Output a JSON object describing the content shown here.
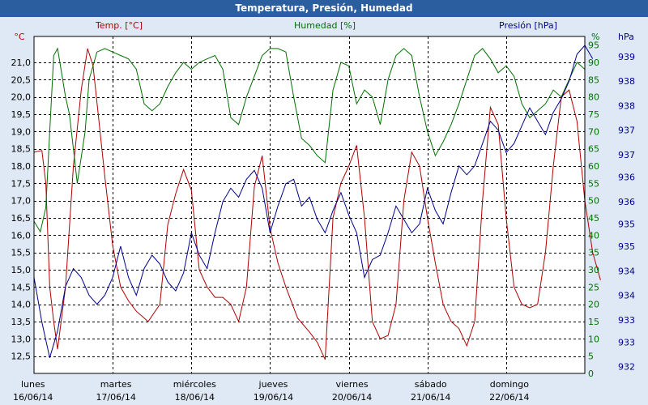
{
  "colors": {
    "temp": "#b00000",
    "hum": "#007000",
    "pres": "#000090",
    "grid": "#000000",
    "plot_bg": "#ffffff",
    "page_bg": "#dfe9f5"
  },
  "chart_data": {
    "type": "line",
    "title": "Temperatura, Presión, Humedad",
    "x_categories": [
      {
        "day": "lunes",
        "date": "16/06/14"
      },
      {
        "day": "martes",
        "date": "17/06/14"
      },
      {
        "day": "miércoles",
        "date": "18/06/14"
      },
      {
        "day": "jueves",
        "date": "19/06/14"
      },
      {
        "day": "viernes",
        "date": "20/06/14"
      },
      {
        "day": "sábado",
        "date": "21/06/14"
      },
      {
        "day": "domingo",
        "date": "22/06/14"
      }
    ],
    "x_range": [
      0,
      7
    ],
    "axes": {
      "temp": {
        "unit": "°C",
        "label": "Temp. [°C]",
        "range": [
          12.0,
          21.75
        ],
        "ticks": [
          "12,5",
          "13,0",
          "13,5",
          "14,0",
          "14,5",
          "15,0",
          "15,5",
          "16,0",
          "16,5",
          "17,0",
          "17,5",
          "18,0",
          "18,5",
          "19,0",
          "19,5",
          "20,0",
          "20,5",
          "21,0"
        ]
      },
      "hum": {
        "unit": "%",
        "label": "Humedad [%]",
        "range": [
          0,
          97.5
        ],
        "ticks": [
          "0",
          "5",
          "10",
          "15",
          "20",
          "25",
          "30",
          "35",
          "40",
          "45",
          "50",
          "55",
          "60",
          "65",
          "70",
          "75",
          "80",
          "85",
          "90",
          "95"
        ]
      },
      "pres": {
        "unit": "hPa",
        "label": "Presión [hPa]",
        "range": [
          931.85,
          939.4
        ],
        "ticks": [
          {
            "v": 932.0,
            "t": "932"
          },
          {
            "v": 932.55,
            "t": "933"
          },
          {
            "v": 933.05,
            "t": "933"
          },
          {
            "v": 933.6,
            "t": "934"
          },
          {
            "v": 934.15,
            "t": "934"
          },
          {
            "v": 934.7,
            "t": "935"
          },
          {
            "v": 935.2,
            "t": "935"
          },
          {
            "v": 935.7,
            "t": "936"
          },
          {
            "v": 936.25,
            "t": "936"
          },
          {
            "v": 936.75,
            "t": "937"
          },
          {
            "v": 937.3,
            "t": "937"
          },
          {
            "v": 937.85,
            "t": "938"
          },
          {
            "v": 938.4,
            "t": "938"
          },
          {
            "v": 938.95,
            "t": "939"
          }
        ]
      }
    },
    "series": [
      {
        "name": "Temp. [°C]",
        "axis": "temp",
        "points": [
          [
            0.0,
            18.4
          ],
          [
            0.1,
            18.45
          ],
          [
            0.15,
            17.5
          ],
          [
            0.2,
            14.5
          ],
          [
            0.25,
            13.5
          ],
          [
            0.3,
            12.7
          ],
          [
            0.4,
            14.5
          ],
          [
            0.5,
            18.0
          ],
          [
            0.6,
            20.2
          ],
          [
            0.68,
            21.4
          ],
          [
            0.75,
            20.9
          ],
          [
            0.9,
            17.7
          ],
          [
            1.0,
            15.7
          ],
          [
            1.1,
            14.5
          ],
          [
            1.2,
            14.1
          ],
          [
            1.3,
            13.8
          ],
          [
            1.45,
            13.5
          ],
          [
            1.6,
            14.0
          ],
          [
            1.7,
            16.3
          ],
          [
            1.8,
            17.2
          ],
          [
            1.9,
            17.9
          ],
          [
            2.0,
            17.3
          ],
          [
            2.1,
            15.0
          ],
          [
            2.2,
            14.5
          ],
          [
            2.3,
            14.2
          ],
          [
            2.4,
            14.2
          ],
          [
            2.5,
            14.0
          ],
          [
            2.6,
            13.5
          ],
          [
            2.7,
            14.5
          ],
          [
            2.8,
            17.4
          ],
          [
            2.9,
            18.3
          ],
          [
            3.0,
            16.2
          ],
          [
            3.1,
            15.2
          ],
          [
            3.2,
            14.5
          ],
          [
            3.35,
            13.6
          ],
          [
            3.5,
            13.2
          ],
          [
            3.6,
            12.9
          ],
          [
            3.7,
            12.4
          ],
          [
            3.8,
            16.5
          ],
          [
            3.9,
            17.5
          ],
          [
            4.0,
            18.0
          ],
          [
            4.1,
            18.6
          ],
          [
            4.2,
            16.5
          ],
          [
            4.3,
            13.5
          ],
          [
            4.4,
            13.0
          ],
          [
            4.5,
            13.1
          ],
          [
            4.6,
            14.0
          ],
          [
            4.7,
            17.0
          ],
          [
            4.8,
            18.4
          ],
          [
            4.9,
            18.0
          ],
          [
            5.0,
            16.5
          ],
          [
            5.1,
            15.2
          ],
          [
            5.2,
            14.0
          ],
          [
            5.3,
            13.5
          ],
          [
            5.4,
            13.3
          ],
          [
            5.5,
            12.8
          ],
          [
            5.6,
            13.5
          ],
          [
            5.7,
            17.0
          ],
          [
            5.8,
            19.7
          ],
          [
            5.9,
            19.2
          ],
          [
            6.0,
            16.5
          ],
          [
            6.1,
            14.5
          ],
          [
            6.2,
            14.0
          ],
          [
            6.3,
            13.9
          ],
          [
            6.4,
            14.0
          ],
          [
            6.5,
            15.5
          ],
          [
            6.6,
            18.0
          ],
          [
            6.7,
            20.0
          ],
          [
            6.8,
            20.2
          ],
          [
            6.9,
            19.3
          ],
          [
            7.0,
            17.0
          ],
          [
            7.1,
            15.5
          ],
          [
            7.2,
            14.7
          ]
        ]
      },
      {
        "name": "Humedad [%]",
        "axis": "hum",
        "points": [
          [
            0.0,
            44
          ],
          [
            0.08,
            41
          ],
          [
            0.15,
            48
          ],
          [
            0.2,
            70
          ],
          [
            0.25,
            92
          ],
          [
            0.3,
            94
          ],
          [
            0.4,
            80
          ],
          [
            0.45,
            75
          ],
          [
            0.5,
            65
          ],
          [
            0.55,
            55
          ],
          [
            0.65,
            70
          ],
          [
            0.7,
            85
          ],
          [
            0.8,
            93
          ],
          [
            0.9,
            94
          ],
          [
            1.0,
            93
          ],
          [
            1.1,
            92
          ],
          [
            1.2,
            91
          ],
          [
            1.3,
            88
          ],
          [
            1.4,
            78
          ],
          [
            1.5,
            76
          ],
          [
            1.6,
            78
          ],
          [
            1.7,
            83
          ],
          [
            1.8,
            87
          ],
          [
            1.9,
            90
          ],
          [
            2.0,
            88
          ],
          [
            2.1,
            90
          ],
          [
            2.2,
            91
          ],
          [
            2.3,
            92
          ],
          [
            2.4,
            88
          ],
          [
            2.5,
            74
          ],
          [
            2.6,
            72
          ],
          [
            2.7,
            80
          ],
          [
            2.8,
            86
          ],
          [
            2.9,
            92
          ],
          [
            3.0,
            94
          ],
          [
            3.1,
            94
          ],
          [
            3.2,
            93
          ],
          [
            3.3,
            80
          ],
          [
            3.4,
            68
          ],
          [
            3.5,
            66
          ],
          [
            3.6,
            63
          ],
          [
            3.7,
            61
          ],
          [
            3.8,
            82
          ],
          [
            3.9,
            90
          ],
          [
            4.0,
            89
          ],
          [
            4.1,
            78
          ],
          [
            4.2,
            82
          ],
          [
            4.3,
            80
          ],
          [
            4.4,
            72
          ],
          [
            4.5,
            85
          ],
          [
            4.6,
            92
          ],
          [
            4.7,
            94
          ],
          [
            4.8,
            92
          ],
          [
            4.9,
            80
          ],
          [
            5.0,
            70
          ],
          [
            5.1,
            63
          ],
          [
            5.2,
            67
          ],
          [
            5.3,
            72
          ],
          [
            5.4,
            78
          ],
          [
            5.5,
            85
          ],
          [
            5.6,
            92
          ],
          [
            5.7,
            94
          ],
          [
            5.8,
            91
          ],
          [
            5.9,
            87
          ],
          [
            6.0,
            89
          ],
          [
            6.1,
            86
          ],
          [
            6.2,
            78
          ],
          [
            6.3,
            74
          ],
          [
            6.4,
            76
          ],
          [
            6.5,
            78
          ],
          [
            6.6,
            82
          ],
          [
            6.7,
            80
          ],
          [
            6.8,
            85
          ],
          [
            6.9,
            90
          ],
          [
            7.0,
            88
          ]
        ]
      },
      {
        "name": "Presión [hPa]",
        "axis": "pres",
        "points": [
          [
            0.0,
            934.0
          ],
          [
            0.1,
            933.0
          ],
          [
            0.2,
            932.2
          ],
          [
            0.3,
            932.8
          ],
          [
            0.4,
            933.8
          ],
          [
            0.5,
            934.2
          ],
          [
            0.6,
            934.0
          ],
          [
            0.7,
            933.6
          ],
          [
            0.8,
            933.4
          ],
          [
            0.9,
            933.6
          ],
          [
            1.0,
            934.0
          ],
          [
            1.1,
            934.7
          ],
          [
            1.2,
            934.0
          ],
          [
            1.3,
            933.6
          ],
          [
            1.4,
            934.2
          ],
          [
            1.5,
            934.5
          ],
          [
            1.6,
            934.3
          ],
          [
            1.7,
            933.9
          ],
          [
            1.8,
            933.7
          ],
          [
            1.9,
            934.1
          ],
          [
            2.0,
            935.0
          ],
          [
            2.1,
            934.5
          ],
          [
            2.2,
            934.2
          ],
          [
            2.3,
            935.0
          ],
          [
            2.4,
            935.7
          ],
          [
            2.5,
            936.0
          ],
          [
            2.6,
            935.8
          ],
          [
            2.7,
            936.2
          ],
          [
            2.8,
            936.4
          ],
          [
            2.9,
            936.0
          ],
          [
            3.0,
            935.0
          ],
          [
            3.1,
            935.6
          ],
          [
            3.2,
            936.1
          ],
          [
            3.3,
            936.2
          ],
          [
            3.4,
            935.6
          ],
          [
            3.5,
            935.8
          ],
          [
            3.6,
            935.3
          ],
          [
            3.7,
            935.0
          ],
          [
            3.8,
            935.5
          ],
          [
            3.9,
            935.9
          ],
          [
            4.0,
            935.4
          ],
          [
            4.1,
            935.0
          ],
          [
            4.2,
            934.0
          ],
          [
            4.3,
            934.4
          ],
          [
            4.4,
            934.5
          ],
          [
            4.5,
            935.0
          ],
          [
            4.6,
            935.6
          ],
          [
            4.7,
            935.3
          ],
          [
            4.8,
            935.0
          ],
          [
            4.9,
            935.2
          ],
          [
            5.0,
            936.0
          ],
          [
            5.1,
            935.5
          ],
          [
            5.2,
            935.2
          ],
          [
            5.3,
            935.9
          ],
          [
            5.4,
            936.5
          ],
          [
            5.5,
            936.3
          ],
          [
            5.6,
            936.5
          ],
          [
            5.7,
            937.0
          ],
          [
            5.8,
            937.5
          ],
          [
            5.9,
            937.3
          ],
          [
            6.0,
            936.8
          ],
          [
            6.1,
            937.0
          ],
          [
            6.2,
            937.4
          ],
          [
            6.3,
            937.8
          ],
          [
            6.4,
            937.5
          ],
          [
            6.5,
            937.2
          ],
          [
            6.6,
            937.7
          ],
          [
            6.7,
            938.0
          ],
          [
            6.8,
            938.4
          ],
          [
            6.9,
            939.0
          ],
          [
            7.0,
            939.2
          ],
          [
            7.1,
            938.9
          ]
        ]
      }
    ]
  }
}
